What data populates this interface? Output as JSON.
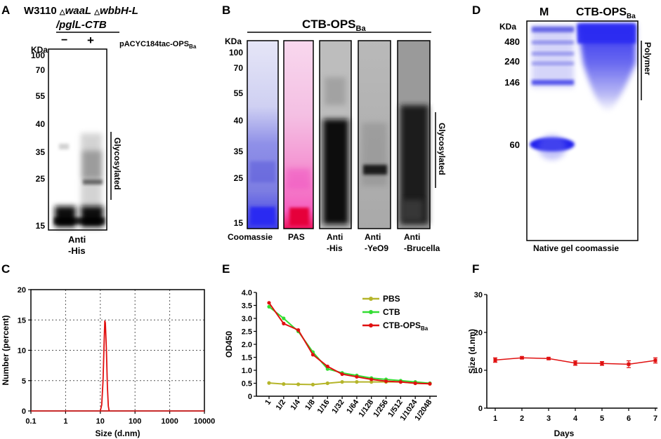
{
  "panels": {
    "A": {
      "letter": "A",
      "strain_line1": "W3110",
      "mut1": "waaL",
      "mut2": "wbbH-L",
      "strain_line2": "/pglL-CTB",
      "delta": "△",
      "minus": "−",
      "plus": "+",
      "plasmid": "pACYC184tac-OPS",
      "plasmid_sub": "Ba",
      "kda": "KDa",
      "markers": [
        "100",
        "70",
        "55",
        "40",
        "35",
        "25",
        "15"
      ],
      "bracket_label": "Glycosylated",
      "lane_label_1": "Anti",
      "lane_label_2": "-His"
    },
    "B": {
      "letter": "B",
      "title": "CTB-OPS",
      "title_sub": "Ba",
      "kda": "KDa",
      "markers": [
        "100",
        "70",
        "55",
        "40",
        "35",
        "25",
        "15"
      ],
      "lanes": [
        {
          "l1": "Coomassie",
          "l2": ""
        },
        {
          "l1": "PAS",
          "l2": ""
        },
        {
          "l1": "Anti",
          "l2": "-His"
        },
        {
          "l1": "Anti",
          "l2": "-YeO9"
        },
        {
          "l1": "Anti",
          "l2": "-Brucella"
        }
      ],
      "bracket_label": "Glycosylated"
    },
    "D": {
      "letter": "D",
      "lane_m": "M",
      "lane_s": "CTB-OPS",
      "lane_s_sub": "Ba",
      "kda": "KDa",
      "markers": [
        "480",
        "240",
        "146",
        "60"
      ],
      "bracket_label": "Polymer",
      "caption": "Native gel coomassie"
    }
  },
  "colors": {
    "line_red": "#e01010",
    "ctb_green": "#33dd33",
    "pbs_olive": "#b5b52a",
    "coomassie": "#5a5ae0",
    "pas": "#ff33aa"
  },
  "chart_data": [
    {
      "id": "C",
      "letter": "C",
      "type": "line",
      "xscale": "log",
      "xlabel": "Size (d.nm)",
      "ylabel": "Number (percent)",
      "xlim": [
        0.1,
        10000
      ],
      "ylim": [
        0,
        20
      ],
      "xticks": [
        "0.1",
        "1",
        "10",
        "100",
        "1000",
        "10000"
      ],
      "yticks": [
        "0",
        "5",
        "10",
        "15",
        "20"
      ],
      "grid": true,
      "series": [
        {
          "name": "CTB-OPS",
          "x": [
            10,
            11,
            12,
            13,
            13.5,
            14,
            15,
            16,
            17,
            18
          ],
          "y": [
            0,
            1,
            5,
            12,
            14.9,
            14.5,
            10,
            4,
            0.8,
            0
          ]
        }
      ]
    },
    {
      "id": "E",
      "letter": "E",
      "type": "line",
      "xlabel": "",
      "ylabel": "OD450",
      "ylim": [
        0,
        4.0
      ],
      "yticks": [
        "0",
        "0.5",
        "1.0",
        "1.5",
        "2.0",
        "2.5",
        "3.0",
        "3.5",
        "4.0"
      ],
      "categories": [
        "1",
        "1/2",
        "1/4",
        "1/8",
        "1/16",
        "1/32",
        "1/64",
        "1/128",
        "1/256",
        "1/512",
        "1/1024",
        "1/2048"
      ],
      "legend": [
        {
          "name": "PBS",
          "sub": ""
        },
        {
          "name": "CTB",
          "sub": ""
        },
        {
          "name": "CTB-OPS",
          "sub": "Ba"
        }
      ],
      "series": [
        {
          "name": "PBS",
          "values": [
            0.51,
            0.47,
            0.46,
            0.45,
            0.5,
            0.55,
            0.55,
            0.55,
            0.55,
            0.55,
            0.5,
            0.48
          ]
        },
        {
          "name": "CTB",
          "values": [
            3.45,
            3.0,
            2.5,
            1.7,
            1.05,
            0.9,
            0.8,
            0.7,
            0.65,
            0.6,
            0.55,
            0.5
          ]
        },
        {
          "name": "CTB-OPS",
          "values": [
            3.6,
            2.8,
            2.55,
            1.6,
            1.15,
            0.85,
            0.75,
            0.65,
            0.58,
            0.55,
            0.5,
            0.48
          ]
        }
      ]
    },
    {
      "id": "F",
      "letter": "F",
      "type": "line",
      "xlabel": "Days",
      "ylabel": "Size (d.nm)",
      "ylim": [
        0,
        30
      ],
      "yticks": [
        "0",
        "10",
        "20",
        "30"
      ],
      "categories": [
        "1",
        "2",
        "3",
        "4",
        "5",
        "6",
        "7"
      ],
      "series": [
        {
          "name": "CTB-OPS",
          "values": [
            12.7,
            13.3,
            13.1,
            11.9,
            11.8,
            11.6,
            12.6
          ],
          "errors": [
            0.6,
            0.3,
            0.3,
            0.6,
            0.5,
            0.9,
            0.7
          ]
        }
      ]
    }
  ]
}
